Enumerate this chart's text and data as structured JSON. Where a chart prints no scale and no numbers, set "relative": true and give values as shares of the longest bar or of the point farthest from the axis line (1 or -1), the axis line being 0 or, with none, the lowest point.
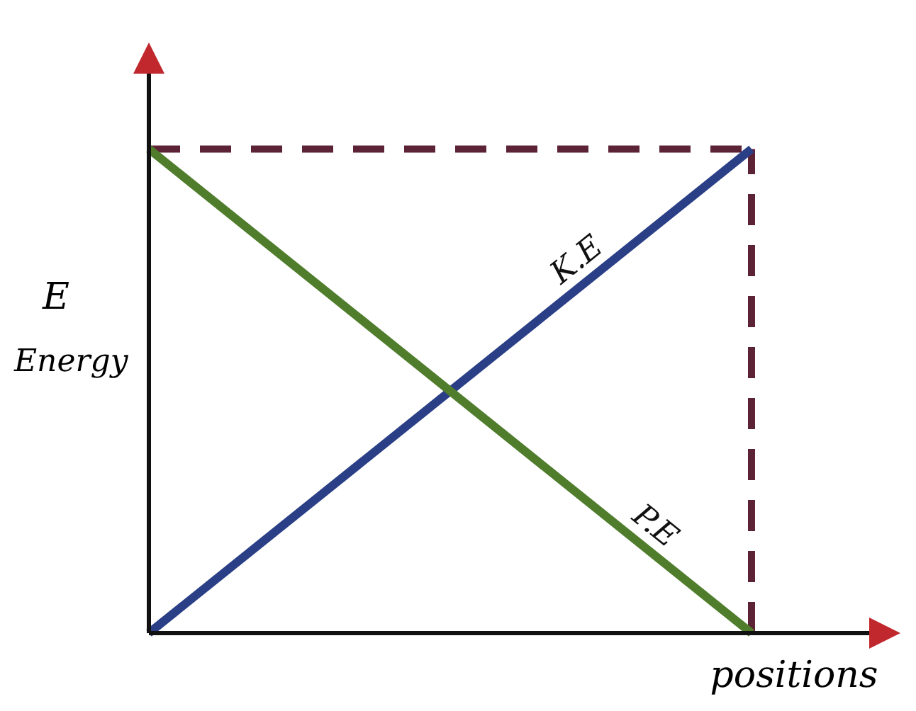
{
  "chart_data": {
    "type": "line",
    "relative": true,
    "xlabel": "positions",
    "ylabel": "Energy",
    "annotations": [
      "E"
    ],
    "categories": [
      null,
      null
    ],
    "marker": "none",
    "line_style": "solid",
    "series": [
      {
        "name": "K.E",
        "color": "#2a3f86",
        "values": [
          0,
          1
        ]
      },
      {
        "name": "P.E",
        "color": "#4f7d2c",
        "values": [
          1,
          0
        ]
      }
    ],
    "ref_lines": [
      {
        "axis": "y",
        "value": 1,
        "color": "#5c2236",
        "line_style": "dashed"
      },
      {
        "axis": "x",
        "color": "#5c2236",
        "line_style": "dashed"
      }
    ]
  }
}
